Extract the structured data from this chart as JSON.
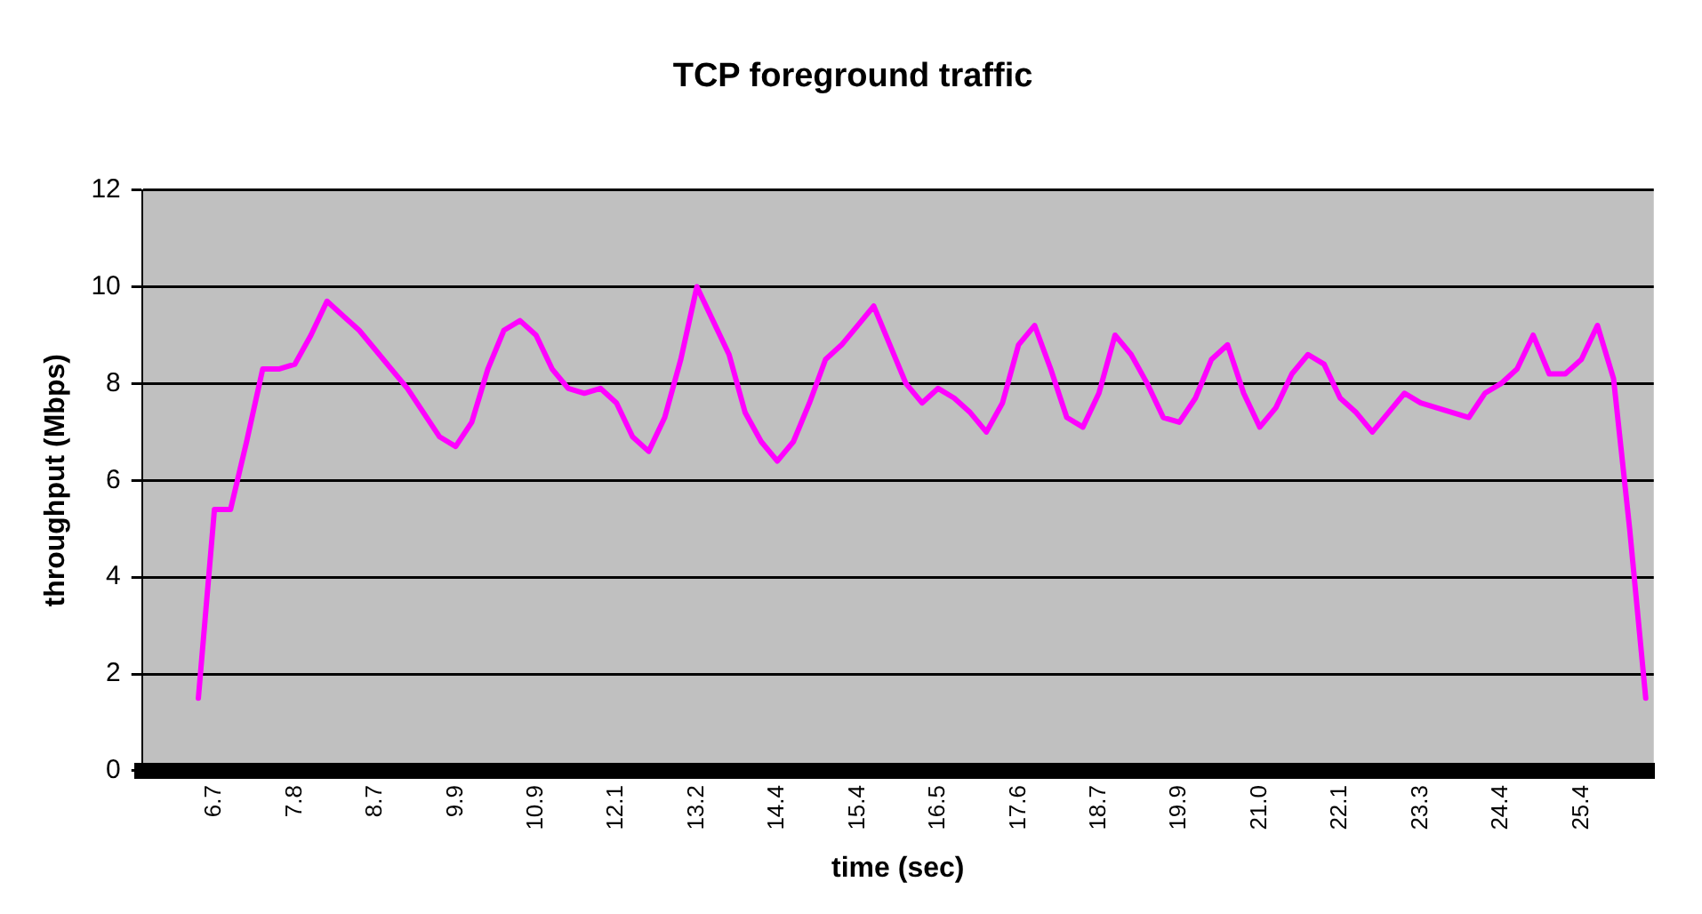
{
  "chart_data": {
    "type": "line",
    "title": "TCP foreground traffic",
    "xlabel": "time (sec)",
    "ylabel": "throughput (Mbps)",
    "categories": [
      null,
      null,
      null,
      null,
      "6.7",
      null,
      null,
      null,
      null,
      "7.8",
      null,
      null,
      null,
      null,
      "8.7",
      null,
      null,
      null,
      null,
      "9.9",
      null,
      null,
      null,
      null,
      "10.9",
      null,
      null,
      null,
      null,
      "12.1",
      null,
      null,
      null,
      null,
      "13.2",
      null,
      null,
      null,
      null,
      "14.4",
      null,
      null,
      null,
      null,
      "15.4",
      null,
      null,
      null,
      null,
      "16.5",
      null,
      null,
      null,
      null,
      "17.6",
      null,
      null,
      null,
      null,
      "18.7",
      null,
      null,
      null,
      null,
      "19.9",
      null,
      null,
      null,
      null,
      "21.0",
      null,
      null,
      null,
      null,
      "22.1",
      null,
      null,
      null,
      null,
      "23.3",
      null,
      null,
      null,
      null,
      "24.4",
      null,
      null,
      null,
      null,
      "25.4",
      null,
      null,
      null,
      null
    ],
    "values": [
      null,
      null,
      null,
      1.5,
      5.4,
      5.4,
      6.8,
      8.3,
      8.3,
      8.4,
      9.0,
      9.7,
      9.4,
      9.1,
      8.7,
      8.3,
      7.9,
      7.4,
      6.9,
      6.7,
      7.2,
      8.3,
      9.1,
      9.3,
      9.0,
      8.3,
      7.9,
      7.8,
      7.9,
      7.6,
      6.9,
      6.6,
      7.3,
      8.5,
      10.0,
      9.3,
      8.6,
      7.4,
      6.8,
      6.4,
      6.8,
      7.6,
      8.5,
      8.8,
      9.2,
      9.6,
      8.8,
      8.0,
      7.6,
      7.9,
      7.7,
      7.4,
      7.0,
      7.6,
      8.8,
      9.2,
      8.3,
      7.3,
      7.1,
      7.8,
      9.0,
      8.6,
      8.0,
      7.3,
      7.2,
      7.7,
      8.5,
      8.8,
      7.8,
      7.1,
      7.5,
      8.2,
      8.6,
      8.4,
      7.7,
      7.4,
      7.0,
      7.4,
      7.8,
      7.6,
      7.5,
      7.4,
      7.3,
      7.8,
      8.0,
      8.3,
      9.0,
      8.2,
      8.2,
      8.5,
      9.2,
      8.1,
      5.0,
      1.5
    ],
    "color": "#ff00ff",
    "ylim": [
      0,
      12
    ],
    "yticks": [
      0,
      2,
      4,
      6,
      8,
      10,
      12
    ],
    "grid": "y",
    "legend": false,
    "marker": "none"
  }
}
